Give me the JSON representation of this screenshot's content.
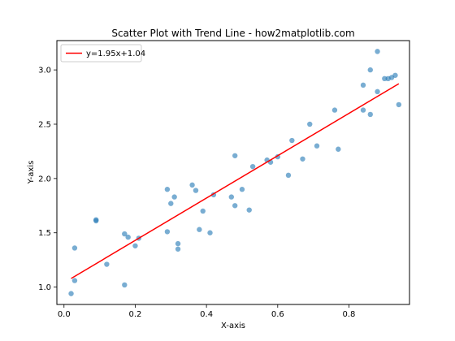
{
  "chart_data": {
    "type": "scatter",
    "title": "Scatter Plot with Trend Line - how2matplotlib.com",
    "xlabel": "X-axis",
    "ylabel": "Y-axis",
    "xlim": [
      -0.02,
      0.97
    ],
    "ylim": [
      0.84,
      3.27
    ],
    "grid": false,
    "legend_position": "upper-left",
    "x_ticks": [
      0.0,
      0.2,
      0.4,
      0.6,
      0.8
    ],
    "x_tick_labels": [
      "0.0",
      "0.2",
      "0.4",
      "0.6",
      "0.8"
    ],
    "y_ticks": [
      1.0,
      1.5,
      2.0,
      2.5,
      3.0
    ],
    "y_tick_labels": [
      "1.0",
      "1.5",
      "2.0",
      "2.5",
      "3.0"
    ],
    "points_color": "#1f77b4",
    "trend_color": "#ff0000",
    "series": [
      {
        "values": [
          [
            0.02,
            0.94
          ],
          [
            0.03,
            1.06
          ],
          [
            0.03,
            1.36
          ],
          [
            0.09,
            1.61
          ],
          [
            0.09,
            1.62
          ],
          [
            0.12,
            1.21
          ],
          [
            0.17,
            1.02
          ],
          [
            0.17,
            1.49
          ],
          [
            0.18,
            1.46
          ],
          [
            0.2,
            1.38
          ],
          [
            0.21,
            1.45
          ],
          [
            0.29,
            1.9
          ],
          [
            0.29,
            1.51
          ],
          [
            0.3,
            1.77
          ],
          [
            0.31,
            1.83
          ],
          [
            0.32,
            1.4
          ],
          [
            0.32,
            1.35
          ],
          [
            0.36,
            1.94
          ],
          [
            0.37,
            1.89
          ],
          [
            0.38,
            1.53
          ],
          [
            0.39,
            1.7
          ],
          [
            0.41,
            1.5
          ],
          [
            0.42,
            1.85
          ],
          [
            0.47,
            1.83
          ],
          [
            0.48,
            2.21
          ],
          [
            0.48,
            1.75
          ],
          [
            0.5,
            1.9
          ],
          [
            0.52,
            1.71
          ],
          [
            0.53,
            2.11
          ],
          [
            0.57,
            2.17
          ],
          [
            0.58,
            2.15
          ],
          [
            0.6,
            2.2
          ],
          [
            0.63,
            2.03
          ],
          [
            0.64,
            2.35
          ],
          [
            0.67,
            2.18
          ],
          [
            0.69,
            2.5
          ],
          [
            0.71,
            2.3
          ],
          [
            0.76,
            2.63
          ],
          [
            0.77,
            2.27
          ],
          [
            0.84,
            2.86
          ],
          [
            0.84,
            2.63
          ],
          [
            0.86,
            3.0
          ],
          [
            0.86,
            2.59
          ],
          [
            0.88,
            2.8
          ],
          [
            0.88,
            3.17
          ],
          [
            0.9,
            2.92
          ],
          [
            0.91,
            2.92
          ],
          [
            0.92,
            2.93
          ],
          [
            0.93,
            2.95
          ],
          [
            0.94,
            2.68
          ]
        ]
      },
      {
        "name": "y=1.95x+1.04",
        "type": "line",
        "slope": 1.95,
        "intercept": 1.04,
        "x_range": [
          0.02,
          0.94
        ]
      }
    ]
  }
}
